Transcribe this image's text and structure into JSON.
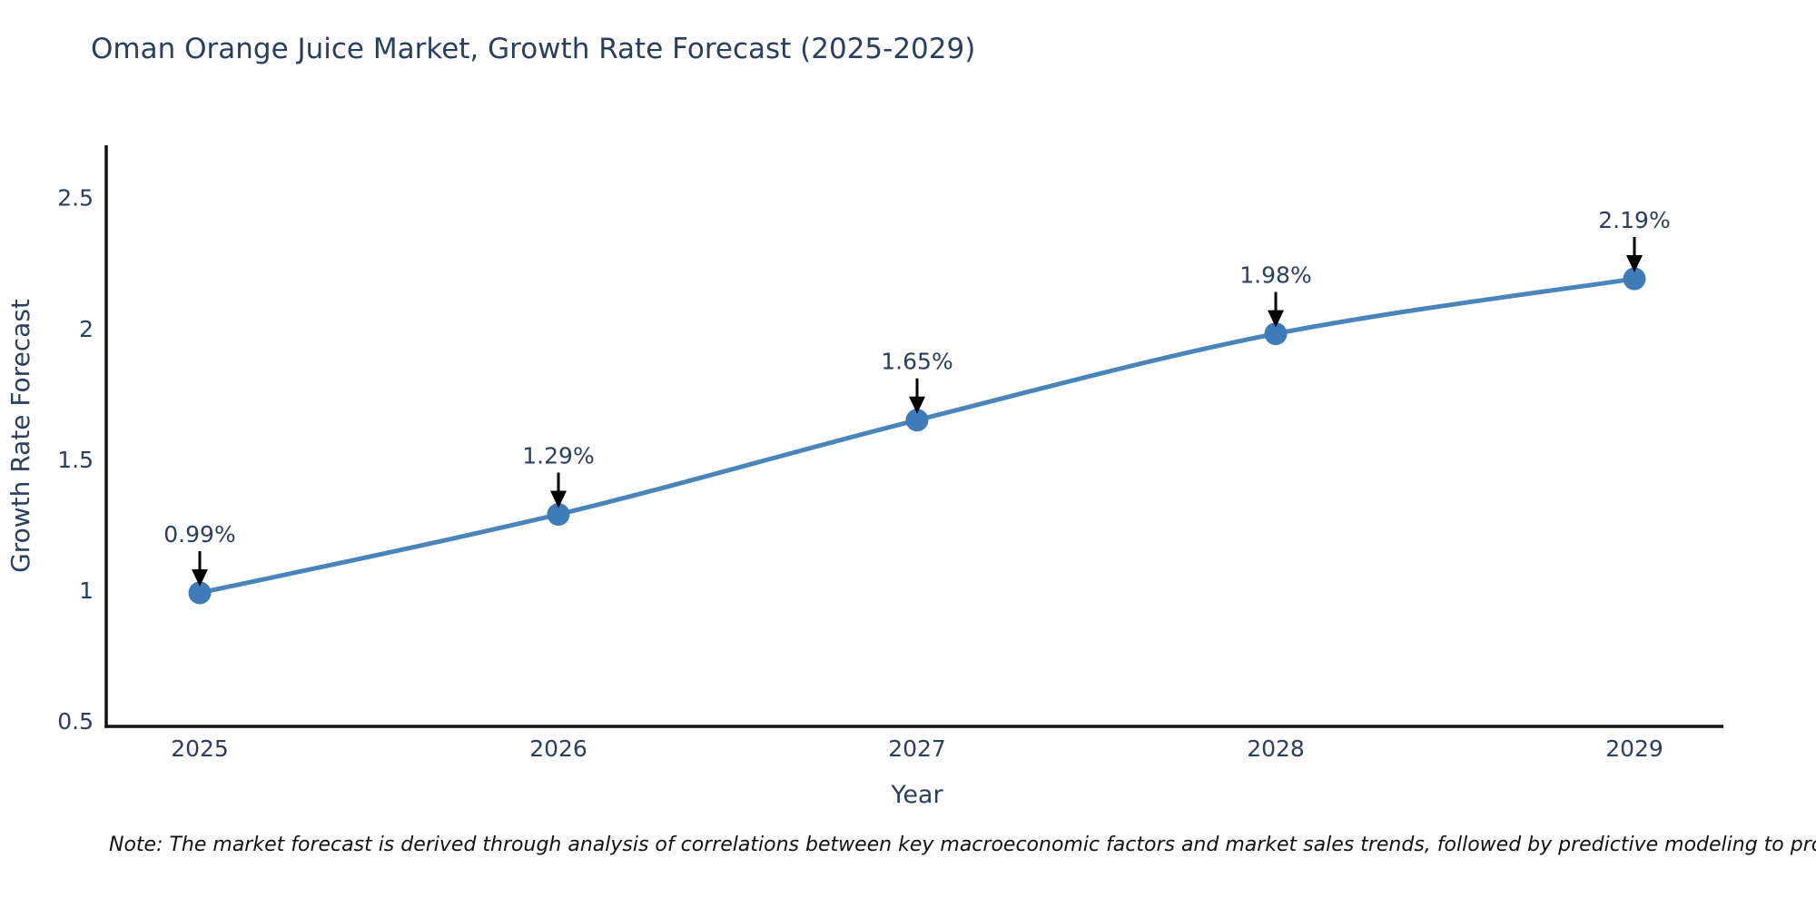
{
  "chart_data": {
    "type": "line",
    "title": "Oman Orange Juice Market, Growth Rate Forecast (2025-2029)",
    "xlabel": "Year",
    "ylabel": "Growth Rate Forecast",
    "categories": [
      "2025",
      "2026",
      "2027",
      "2028",
      "2029"
    ],
    "series": [
      {
        "name": "Growth Rate Forecast",
        "values": [
          0.99,
          1.29,
          1.65,
          1.98,
          2.19
        ]
      }
    ],
    "point_labels": [
      "0.99%",
      "1.29%",
      "1.65%",
      "1.98%",
      "2.19%"
    ],
    "yticks": [
      0.5,
      1,
      1.5,
      2,
      2.5
    ],
    "ylim": [
      0.48,
      2.7
    ],
    "grid": false,
    "legend_position": "none",
    "colors": {
      "line": "#4785bb",
      "marker": "#3d7cb8",
      "axis": "#111111",
      "text": "#2a3f5f",
      "annotation_text": "#2a3f5f",
      "arrow": "#000000"
    }
  },
  "note": "Note: The market forecast is derived through analysis of correlations between key macroeconomic factors and market sales trends, followed by predictive modeling to project future sales"
}
